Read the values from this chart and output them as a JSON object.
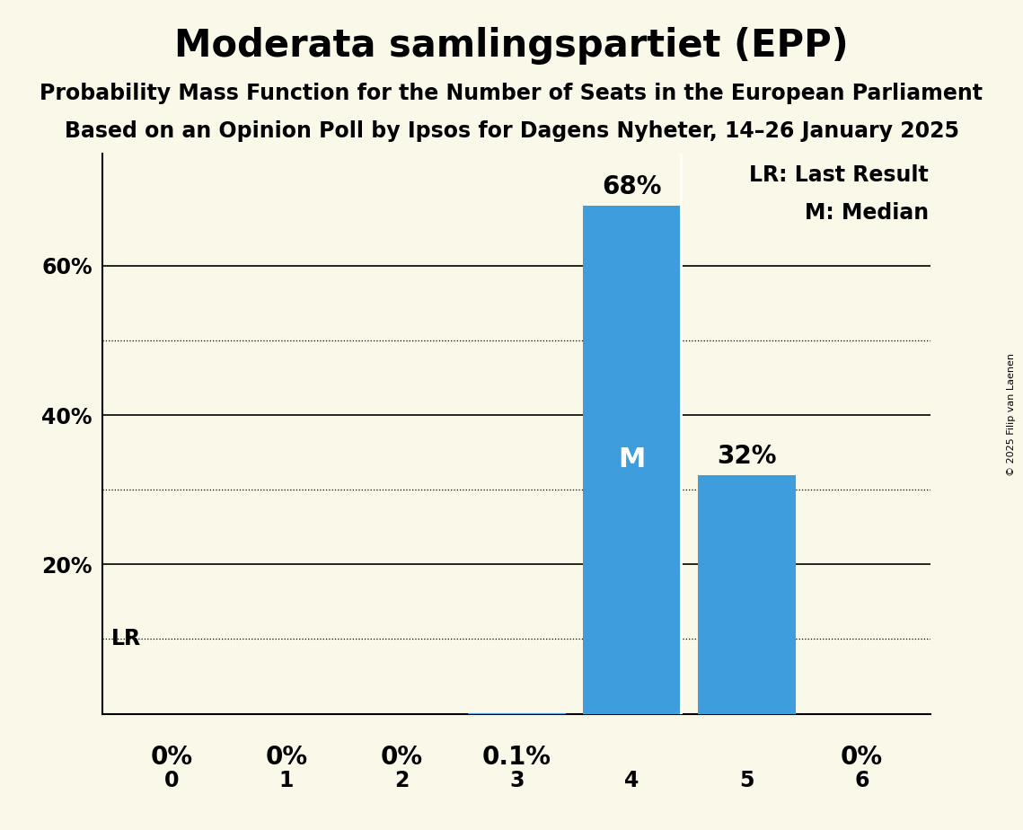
{
  "title": "Moderata samlingspartiet (EPP)",
  "subtitle1": "Probability Mass Function for the Number of Seats in the European Parliament",
  "subtitle2": "Based on an Opinion Poll by Ipsos for Dagens Nyheter, 14–26 January 2025",
  "copyright": "© 2025 Filip van Laenen",
  "categories": [
    0,
    1,
    2,
    3,
    4,
    5,
    6
  ],
  "values": [
    0.0,
    0.0,
    0.0,
    0.001,
    0.68,
    0.32,
    0.0
  ],
  "labels": [
    "0%",
    "0%",
    "0%",
    "0.1%",
    "68%",
    "32%",
    "0%"
  ],
  "bar_color": "#3d9ddd",
  "background_color": "#faf8e8",
  "median_bar": 4,
  "last_result_value": 0.1,
  "solid_gridlines": [
    0.2,
    0.4,
    0.6
  ],
  "dotted_gridlines": [
    0.1,
    0.3,
    0.5
  ],
  "ylim": [
    0,
    0.75
  ],
  "title_fontsize": 30,
  "subtitle_fontsize": 17,
  "label_fontsize": 17,
  "tick_fontsize": 17,
  "median_label_color": "white",
  "median_label_fontsize": 22,
  "bar_label_fontsize": 20,
  "legend_fontsize": 17,
  "ytick_labels_show": [
    0.2,
    0.4,
    0.6
  ],
  "ytick_labels_text": [
    "20%",
    "40%",
    "60%"
  ]
}
